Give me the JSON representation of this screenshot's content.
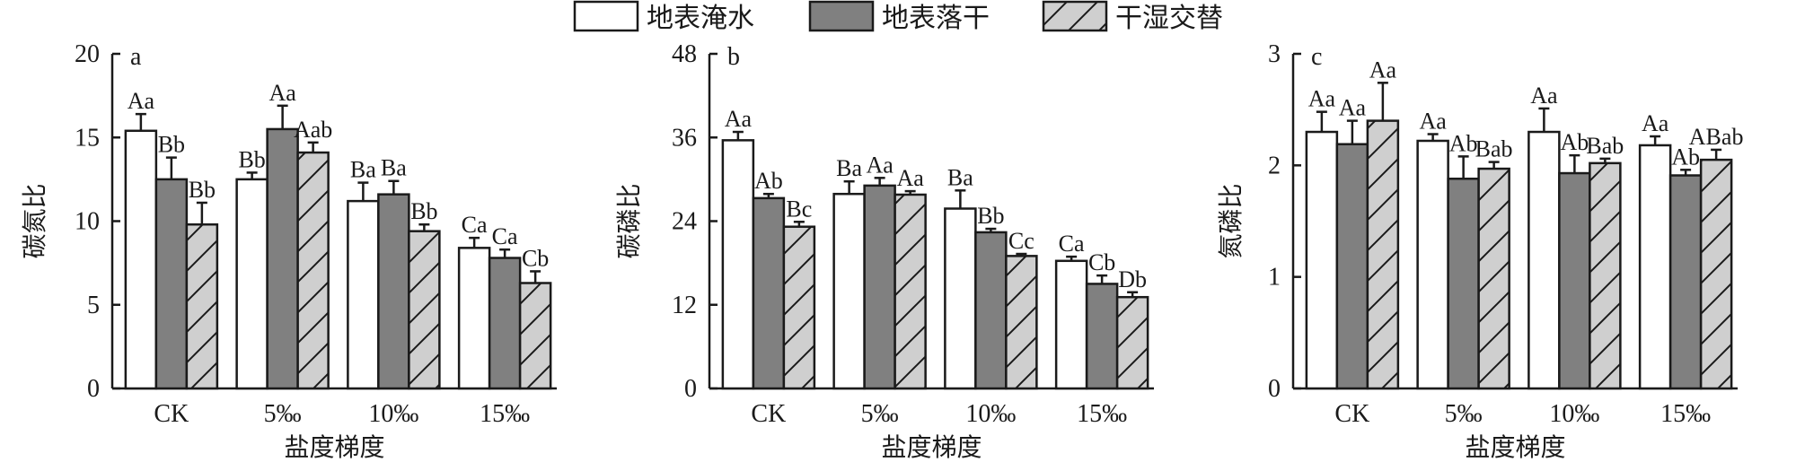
{
  "legend": [
    {
      "label": "地表淹水",
      "fill": "#ffffff",
      "pattern": "none"
    },
    {
      "label": "地表落干",
      "fill": "#808080",
      "pattern": "none"
    },
    {
      "label": "干湿交替",
      "fill": "#cfcfcf",
      "pattern": "hatch"
    }
  ],
  "colors": {
    "flooding": "#ffffff",
    "drying": "#808080",
    "alternating": "#cfcfcf",
    "stroke": "#1a1a1a"
  },
  "chart_data": [
    {
      "type": "bar",
      "panel_label": "a",
      "xlabel": "盐度梯度",
      "ylabel": "碳氮比",
      "categories": [
        "CK",
        "5‰",
        "10‰",
        "15‰"
      ],
      "ylim": [
        0,
        20
      ],
      "yticks": [
        0,
        5,
        10,
        15,
        20
      ],
      "series": [
        {
          "name": "地表淹水",
          "values": [
            15.4,
            12.5,
            11.2,
            8.4
          ],
          "errors": [
            1.0,
            0.4,
            1.1,
            0.6
          ],
          "labels": [
            "Aa",
            "Bb",
            "Ba",
            "Ca"
          ]
        },
        {
          "name": "地表落干",
          "values": [
            12.5,
            15.5,
            11.6,
            7.8
          ],
          "errors": [
            1.3,
            1.4,
            0.8,
            0.5
          ],
          "labels": [
            "Bb",
            "Aa",
            "Ba",
            "Ca"
          ]
        },
        {
          "name": "干湿交替",
          "values": [
            9.8,
            14.1,
            9.4,
            6.3
          ],
          "errors": [
            1.3,
            0.6,
            0.4,
            0.7
          ],
          "labels": [
            "Bb",
            "Aab",
            "Bb",
            "Cb"
          ]
        }
      ]
    },
    {
      "type": "bar",
      "panel_label": "b",
      "xlabel": "盐度梯度",
      "ylabel": "碳磷比",
      "categories": [
        "CK",
        "5‰",
        "10‰",
        "15‰"
      ],
      "ylim": [
        0,
        48
      ],
      "yticks": [
        0,
        12,
        24,
        36,
        48
      ],
      "series": [
        {
          "name": "地表淹水",
          "values": [
            35.6,
            27.9,
            25.8,
            18.3
          ],
          "errors": [
            1.2,
            1.8,
            2.6,
            0.6
          ],
          "labels": [
            "Aa",
            "Ba",
            "Ba",
            "Ca"
          ]
        },
        {
          "name": "地表落干",
          "values": [
            27.3,
            29.1,
            22.4,
            15.0
          ],
          "errors": [
            0.6,
            1.1,
            0.5,
            1.2
          ],
          "labels": [
            "Ab",
            "Aa",
            "Bb",
            "Cb"
          ]
        },
        {
          "name": "干湿交替",
          "values": [
            23.2,
            27.8,
            19.0,
            13.1
          ],
          "errors": [
            0.7,
            0.5,
            0.3,
            0.7
          ],
          "labels": [
            "Bc",
            "Aa",
            "Cc",
            "Db"
          ]
        }
      ]
    },
    {
      "type": "bar",
      "panel_label": "c",
      "xlabel": "盐度梯度",
      "ylabel": "氮磷比",
      "categories": [
        "CK",
        "5‰",
        "10‰",
        "15‰"
      ],
      "ylim": [
        0,
        3
      ],
      "yticks": [
        0,
        1,
        2,
        3
      ],
      "series": [
        {
          "name": "地表淹水",
          "values": [
            2.3,
            2.22,
            2.3,
            2.18
          ],
          "errors": [
            0.18,
            0.06,
            0.21,
            0.08
          ],
          "labels": [
            "Aa",
            "Aa",
            "Aa",
            "Aa"
          ]
        },
        {
          "name": "地表落干",
          "values": [
            2.19,
            1.88,
            1.93,
            1.91
          ],
          "errors": [
            0.21,
            0.2,
            0.16,
            0.05
          ],
          "labels": [
            "Aa",
            "Ab",
            "Ab",
            "Ab"
          ]
        },
        {
          "name": "干湿交替",
          "values": [
            2.4,
            1.97,
            2.02,
            2.05
          ],
          "errors": [
            0.34,
            0.06,
            0.04,
            0.09
          ],
          "labels": [
            "Aa",
            "Bab",
            "Bab",
            "ABab"
          ]
        }
      ]
    }
  ]
}
